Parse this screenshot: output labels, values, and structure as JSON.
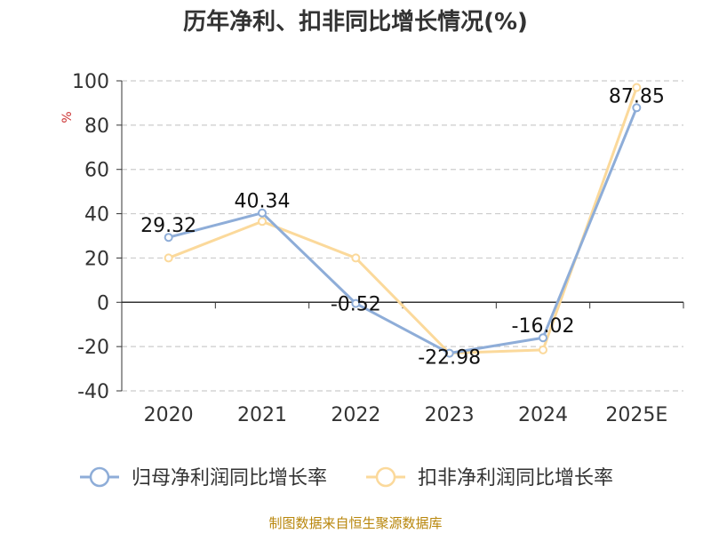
{
  "chart_data": {
    "type": "line",
    "title": "历年净利、扣非同比增长情况(%)",
    "ylabel": "%",
    "xlabel": "",
    "categories": [
      "2020",
      "2021",
      "2022",
      "2023",
      "2024",
      "2025E"
    ],
    "ylim": [
      -40,
      100
    ],
    "yticks": [
      -40,
      -20,
      0,
      20,
      40,
      60,
      80,
      100
    ],
    "grid": true,
    "legend_position": "bottom",
    "series": [
      {
        "name": "归母净利润同比增长率",
        "color": "#8eadd8",
        "values": [
          29.32,
          40.34,
          -0.52,
          -22.98,
          -16.02,
          87.85
        ],
        "labels": [
          "29.32",
          "40.34",
          "-0.52",
          "-22.98",
          "-16.02",
          "87.85"
        ]
      },
      {
        "name": "扣非净利润同比增长率",
        "color": "#fbd99b",
        "values": [
          20.0,
          36.5,
          20.0,
          -23.0,
          -21.5,
          97.0
        ]
      }
    ],
    "source": "制图数据来自恒生聚源数据库"
  }
}
